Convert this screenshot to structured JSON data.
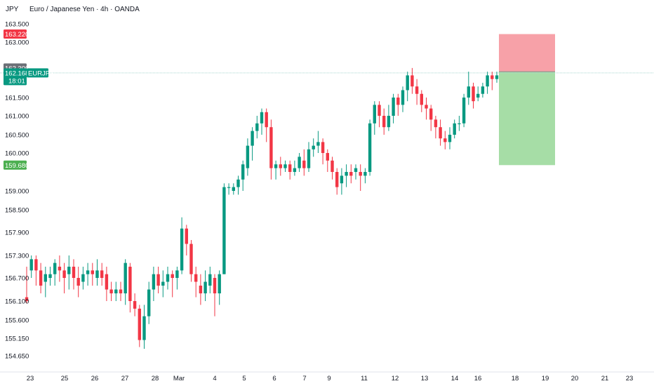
{
  "header": {
    "currency": "JPY",
    "title": "Euro / Japanese Yen · 4h · OANDA"
  },
  "chart_data": {
    "type": "candlestick",
    "symbol": "EURJPY",
    "ylim": [
      154.3,
      163.9
    ],
    "y_ticks": [
      "163.500",
      "163.000",
      "161.500",
      "161.000",
      "160.500",
      "160.000",
      "159.000",
      "158.500",
      "157.900",
      "157.300",
      "156.700",
      "156.100",
      "155.600",
      "155.150",
      "154.650"
    ],
    "x_ticks": [
      "23",
      "25",
      "26",
      "27",
      "28",
      "Mar",
      "4",
      "5",
      "6",
      "7",
      "9",
      "11",
      "12",
      "13",
      "14",
      "16",
      "18",
      "19",
      "20",
      "21",
      "23"
    ],
    "colors": {
      "up": "#089981",
      "down": "#F23645",
      "stop_zone": "#F7A1A8",
      "target_zone": "#A6DDA6",
      "price_line": "#A9D8D0"
    },
    "badges": [
      {
        "value": "163.220",
        "color": "#F23645"
      },
      {
        "value": "162.300",
        "color": "#6B6F76"
      },
      {
        "value": "162.168",
        "label": "EURJPY",
        "sub": "18:01",
        "color": "#089981"
      },
      {
        "value": "159.680",
        "color": "#4CAF50"
      }
    ],
    "position_tool": {
      "entry": 162.2,
      "stop": 163.22,
      "target": 159.68
    },
    "candles": [
      [
        156.2,
        156.1,
        157.0,
        156.05
      ],
      [
        156.9,
        157.2,
        157.3,
        156.7
      ],
      [
        157.2,
        156.9,
        157.3,
        156.5
      ],
      [
        156.9,
        156.5,
        157.1,
        156.3
      ],
      [
        156.6,
        156.8,
        157.0,
        156.2
      ],
      [
        156.7,
        156.8,
        157.0,
        156.5
      ],
      [
        156.8,
        157.1,
        157.2,
        156.5
      ],
      [
        157.0,
        156.9,
        157.3,
        156.6
      ],
      [
        156.9,
        156.7,
        157.1,
        156.3
      ],
      [
        156.8,
        157.0,
        157.3,
        156.4
      ],
      [
        157.0,
        156.7,
        157.2,
        156.4
      ],
      [
        156.7,
        156.5,
        157.0,
        156.2
      ],
      [
        156.6,
        156.8,
        157.0,
        156.4
      ],
      [
        156.8,
        156.9,
        157.1,
        156.5
      ],
      [
        156.9,
        156.8,
        157.1,
        156.5
      ],
      [
        156.7,
        156.9,
        157.2,
        156.5
      ],
      [
        156.9,
        156.7,
        157.1,
        156.5
      ],
      [
        156.8,
        156.4,
        157.0,
        156.1
      ],
      [
        156.4,
        156.3,
        156.6,
        156.1
      ],
      [
        156.3,
        156.4,
        156.6,
        156.1
      ],
      [
        156.4,
        156.3,
        156.6,
        156.1
      ],
      [
        156.3,
        157.1,
        157.2,
        156.0
      ],
      [
        157.0,
        156.1,
        157.1,
        155.8
      ],
      [
        156.1,
        155.9,
        156.3,
        155.7
      ],
      [
        155.9,
        155.1,
        156.0,
        154.9
      ],
      [
        155.1,
        155.7,
        156.0,
        154.85
      ],
      [
        155.7,
        156.4,
        156.6,
        155.5
      ],
      [
        156.4,
        156.8,
        157.0,
        156.1
      ],
      [
        156.8,
        156.5,
        157.0,
        156.3
      ],
      [
        156.5,
        156.6,
        156.9,
        156.2
      ],
      [
        156.6,
        156.8,
        157.0,
        156.4
      ],
      [
        156.8,
        156.7,
        156.9,
        156.2
      ],
      [
        156.7,
        156.9,
        157.0,
        156.4
      ],
      [
        156.9,
        158.0,
        158.3,
        156.8
      ],
      [
        158.0,
        157.6,
        158.1,
        157.3
      ],
      [
        157.6,
        156.8,
        157.7,
        156.6
      ],
      [
        156.8,
        156.6,
        157.0,
        156.2
      ],
      [
        156.5,
        156.3,
        156.8,
        156.0
      ],
      [
        156.3,
        156.6,
        156.9,
        156.1
      ],
      [
        156.5,
        156.8,
        157.0,
        156.3
      ],
      [
        156.7,
        156.3,
        156.8,
        155.7
      ],
      [
        156.3,
        156.8,
        156.9,
        156.0
      ],
      [
        156.8,
        159.1,
        159.2,
        156.8
      ],
      [
        159.1,
        159.1,
        159.2,
        158.9
      ],
      [
        159.0,
        159.1,
        159.2,
        158.9
      ],
      [
        159.1,
        159.3,
        159.4,
        158.9
      ],
      [
        159.3,
        159.7,
        159.8,
        159.0
      ],
      [
        159.6,
        160.2,
        160.4,
        159.4
      ],
      [
        160.2,
        160.6,
        160.7,
        159.8
      ],
      [
        160.6,
        160.8,
        161.0,
        160.4
      ],
      [
        160.8,
        161.1,
        161.2,
        160.5
      ],
      [
        161.1,
        160.7,
        161.2,
        160.3
      ],
      [
        160.7,
        159.6,
        160.9,
        159.3
      ],
      [
        159.6,
        159.7,
        159.8,
        159.3
      ],
      [
        159.7,
        159.6,
        159.9,
        159.4
      ],
      [
        159.6,
        159.7,
        159.8,
        159.5
      ],
      [
        159.7,
        159.5,
        159.8,
        159.3
      ],
      [
        159.5,
        159.6,
        159.8,
        159.4
      ],
      [
        159.6,
        159.9,
        160.0,
        159.5
      ],
      [
        159.8,
        159.6,
        160.1,
        159.4
      ],
      [
        159.6,
        160.1,
        160.3,
        159.5
      ],
      [
        160.1,
        160.2,
        160.4,
        159.9
      ],
      [
        160.2,
        160.3,
        160.6,
        160.0
      ],
      [
        160.3,
        160.0,
        160.4,
        159.7
      ],
      [
        160.0,
        159.8,
        160.1,
        159.5
      ],
      [
        159.8,
        159.5,
        159.9,
        159.3
      ],
      [
        159.5,
        159.1,
        159.6,
        158.9
      ],
      [
        159.2,
        159.4,
        159.6,
        158.9
      ],
      [
        159.4,
        159.5,
        159.7,
        159.1
      ],
      [
        159.5,
        159.4,
        159.7,
        159.2
      ],
      [
        159.5,
        159.6,
        159.7,
        159.3
      ],
      [
        159.5,
        159.4,
        159.7,
        159.0
      ],
      [
        159.4,
        159.5,
        159.6,
        159.2
      ],
      [
        159.5,
        160.8,
        160.9,
        159.4
      ],
      [
        160.8,
        161.3,
        161.4,
        160.5
      ],
      [
        161.3,
        161.0,
        161.4,
        160.7
      ],
      [
        161.0,
        160.7,
        161.2,
        160.5
      ],
      [
        160.7,
        161.0,
        161.3,
        160.6
      ],
      [
        161.0,
        161.5,
        161.6,
        160.8
      ],
      [
        161.5,
        161.3,
        161.6,
        161.0
      ],
      [
        161.3,
        161.7,
        161.8,
        161.1
      ],
      [
        161.7,
        162.1,
        162.2,
        161.4
      ],
      [
        162.1,
        161.8,
        162.3,
        161.6
      ],
      [
        161.8,
        161.6,
        162.0,
        161.3
      ],
      [
        161.6,
        161.3,
        161.7,
        161.1
      ],
      [
        161.3,
        161.2,
        161.5,
        160.9
      ],
      [
        161.2,
        160.9,
        161.3,
        160.6
      ],
      [
        160.9,
        160.7,
        161.0,
        160.4
      ],
      [
        160.7,
        160.4,
        160.9,
        160.2
      ],
      [
        160.4,
        160.3,
        160.6,
        160.1
      ],
      [
        160.3,
        160.5,
        160.7,
        160.1
      ],
      [
        160.5,
        160.8,
        160.9,
        160.4
      ],
      [
        160.8,
        160.8,
        161.0,
        160.6
      ],
      [
        160.8,
        161.5,
        161.6,
        160.7
      ],
      [
        161.5,
        161.8,
        162.2,
        161.3
      ],
      [
        161.8,
        161.4,
        161.9,
        161.2
      ],
      [
        161.5,
        161.6,
        161.8,
        161.4
      ],
      [
        161.6,
        161.8,
        161.9,
        161.5
      ],
      [
        161.8,
        162.1,
        162.2,
        161.6
      ],
      [
        162.1,
        162.0,
        162.2,
        161.7
      ],
      [
        162.0,
        162.1,
        162.2,
        161.9
      ]
    ]
  }
}
